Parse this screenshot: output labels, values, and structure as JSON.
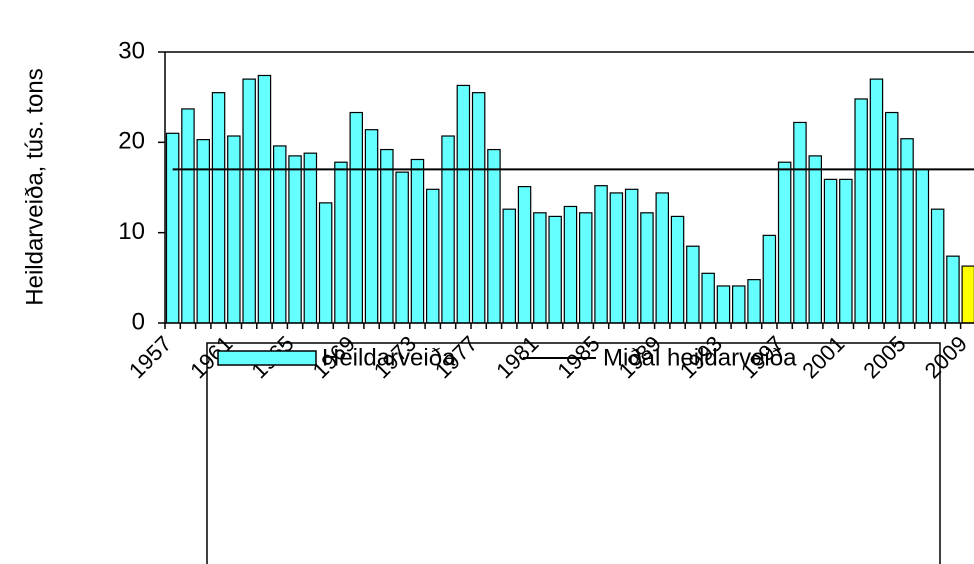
{
  "chart_data": {
    "type": "bar",
    "y_label": "Heildarveiða, tús. tons",
    "categories": [
      "1957",
      null,
      null,
      null,
      "1961",
      null,
      null,
      null,
      "1965",
      null,
      null,
      null,
      "1969",
      null,
      null,
      null,
      "1973",
      null,
      null,
      null,
      "1977",
      null,
      null,
      null,
      "1981",
      null,
      null,
      null,
      "1985",
      null,
      null,
      null,
      "1989",
      null,
      null,
      null,
      "1993",
      null,
      null,
      null,
      "1997",
      null,
      null,
      null,
      "2001",
      null,
      null,
      null,
      "2005",
      null,
      null,
      null,
      "2009"
    ],
    "series": [
      {
        "name": "Heildarveiða",
        "color": "#66ffff",
        "colors": [
          "#66ffff",
          "#66ffff",
          "#66ffff",
          "#66ffff",
          "#66ffff",
          "#66ffff",
          "#66ffff",
          "#66ffff",
          "#66ffff",
          "#66ffff",
          "#66ffff",
          "#66ffff",
          "#66ffff",
          "#66ffff",
          "#66ffff",
          "#66ffff",
          "#66ffff",
          "#66ffff",
          "#66ffff",
          "#66ffff",
          "#66ffff",
          "#66ffff",
          "#66ffff",
          "#66ffff",
          "#66ffff",
          "#66ffff",
          "#66ffff",
          "#66ffff",
          "#66ffff",
          "#66ffff",
          "#66ffff",
          "#66ffff",
          "#66ffff",
          "#66ffff",
          "#66ffff",
          "#66ffff",
          "#66ffff",
          "#66ffff",
          "#66ffff",
          "#66ffff",
          "#66ffff",
          "#66ffff",
          "#66ffff",
          "#66ffff",
          "#66ffff",
          "#66ffff",
          "#66ffff",
          "#66ffff",
          "#66ffff",
          "#66ffff",
          "#66ffff",
          "#66ffff",
          "#ffff00"
        ],
        "values": [
          21,
          23.7,
          20.3,
          25.5,
          20.7,
          27,
          27.4,
          19.6,
          18.5,
          18.8,
          13.3,
          17.8,
          23.3,
          21.4,
          19.2,
          16.7,
          18.1,
          14.8,
          20.7,
          26.3,
          25.5,
          19.2,
          12.6,
          15.1,
          12.2,
          11.8,
          12.9,
          12.2,
          15.2,
          14.4,
          14.8,
          12.2,
          14.4,
          11.8,
          8.5,
          5.5,
          4.1,
          4.1,
          4.8,
          9.7,
          17.8,
          22.2,
          18.5,
          15.9,
          15.9,
          24.8,
          27,
          23.3,
          20.4,
          17,
          12.6,
          7.4,
          6.3
        ]
      },
      {
        "name": "Miðal heildarveiða",
        "color": "#000000",
        "type": "hline",
        "value": 17
      }
    ],
    "ylim": [
      0,
      30
    ],
    "yticks": [
      0,
      10,
      20,
      30
    ]
  }
}
